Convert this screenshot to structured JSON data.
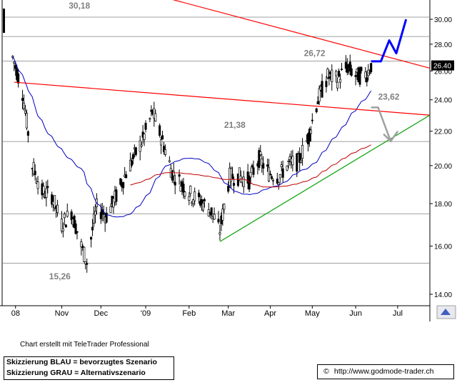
{
  "chart_data": {
    "type": "candlestick",
    "title": "",
    "y_axis": {
      "scale": "log",
      "ticks": [
        14.0,
        16.0,
        18.0,
        20.0,
        22.0,
        24.0,
        26.0,
        28.0,
        30.0
      ],
      "tick_labels": [
        "14.00",
        "16.00",
        "18.00",
        "20.00",
        "22.00",
        "24.00",
        "26.00",
        "28.00",
        "30.00"
      ],
      "position": "right",
      "ylim": [
        13.5,
        31.3
      ]
    },
    "x_axis": {
      "tick_labels": [
        "08",
        "Nov",
        "Dec",
        "'09",
        "Feb",
        "Mar",
        "Apr",
        "May",
        "Jun",
        "Jul"
      ],
      "range": [
        "2008-09-29",
        "2009-07-24"
      ]
    },
    "grid": false,
    "last_price": {
      "label": "26.40",
      "value": 26.4,
      "color": "#000000"
    },
    "price_series_summary": {
      "start": "2008-09-29",
      "end": "2009-06-12",
      "approx_closes": [
        [
          "2008-09-29",
          27.0
        ],
        [
          "2008-10-06",
          24.5
        ],
        [
          "2008-10-13",
          20.0
        ],
        [
          "2008-10-20",
          18.6
        ],
        [
          "2008-10-27",
          18.4
        ],
        [
          "2008-11-03",
          17.0
        ],
        [
          "2008-11-10",
          17.6
        ],
        [
          "2008-11-17",
          16.0
        ],
        [
          "2008-11-21",
          15.3
        ],
        [
          "2008-11-28",
          17.8
        ],
        [
          "2008-12-05",
          17.4
        ],
        [
          "2008-12-12",
          18.4
        ],
        [
          "2008-12-19",
          19.6
        ],
        [
          "2008-12-31",
          21.5
        ],
        [
          "2009-01-07",
          23.2
        ],
        [
          "2009-01-14",
          21.4
        ],
        [
          "2009-01-21",
          19.6
        ],
        [
          "2009-01-28",
          19.0
        ],
        [
          "2009-02-04",
          18.4
        ],
        [
          "2009-02-11",
          18.1
        ],
        [
          "2009-02-18",
          17.6
        ],
        [
          "2009-02-24",
          16.7
        ],
        [
          "2009-03-03",
          19.4
        ],
        [
          "2009-03-10",
          19.4
        ],
        [
          "2009-03-17",
          19.2
        ],
        [
          "2009-03-24",
          20.4
        ],
        [
          "2009-03-31",
          19.6
        ],
        [
          "2009-04-07",
          19.4
        ],
        [
          "2009-04-14",
          20.1
        ],
        [
          "2009-04-21",
          20.2
        ],
        [
          "2009-04-28",
          21.6
        ],
        [
          "2009-05-05",
          24.0
        ],
        [
          "2009-05-12",
          25.6
        ],
        [
          "2009-05-19",
          25.4
        ],
        [
          "2009-05-26",
          26.3
        ],
        [
          "2009-06-02",
          25.6
        ],
        [
          "2009-06-09",
          25.8
        ],
        [
          "2009-06-12",
          26.4
        ]
      ]
    },
    "annotations": [
      {
        "text": "30,18",
        "value": 30.18
      },
      {
        "text": "26,72",
        "value": 26.72
      },
      {
        "text": "23,62",
        "value": 23.62
      },
      {
        "text": "21,38",
        "value": 21.38
      },
      {
        "text": "15,26",
        "value": 15.26
      }
    ],
    "horizontal_lines": [
      30.18,
      28.6,
      26.72,
      21.38,
      17.5,
      15.26
    ],
    "series": [
      {
        "name": "",
        "kind": "moving-average",
        "color": "#0000c0"
      },
      {
        "name": "",
        "kind": "moving-average",
        "color": "#c00000"
      }
    ],
    "trendlines": [
      {
        "kind": "resistance-descending",
        "color": "#ff0000",
        "from": [
          "2008-09-30",
          25.2
        ],
        "to": [
          "2009-07-24",
          23.0
        ]
      },
      {
        "kind": "support-ascending",
        "color": "#00a000",
        "from": [
          "2009-02-24",
          16.2
        ],
        "to": [
          "2009-07-24",
          23.0
        ]
      },
      {
        "kind": "long-term-descending",
        "color": "#ff0000",
        "from": [
          "2008-11-14",
          34.0
        ],
        "to": [
          "2009-07-24",
          26.2
        ]
      }
    ],
    "scenarios": [
      {
        "kind": "blue",
        "color": "#0000ff",
        "path": [
          [
            "2009-06-12",
            26.7
          ],
          [
            "2009-06-19",
            26.7
          ],
          [
            "2009-06-25",
            28.3
          ],
          [
            "2009-06-30",
            27.3
          ],
          [
            "2009-07-07",
            30.0
          ]
        ]
      },
      {
        "kind": "grey",
        "color": "#a0a0a0",
        "path": [
          [
            "2009-06-12",
            23.5
          ],
          [
            "2009-06-17",
            23.5
          ],
          [
            "2009-06-26",
            21.4
          ]
        ]
      }
    ]
  },
  "footer": {
    "credit": "Chart erstellt mit TeleTrader Professional",
    "legend": [
      "Skizzierung BLAU = bevorzugtes Szenario",
      "Skizzierung GRAU = Alternativszenario"
    ],
    "copyright_symbol": "©",
    "url": "http://www.godmode-trader.ch"
  },
  "colors": {
    "candle": "#000000",
    "ma_blue": "#0000c0",
    "ma_red": "#c00000",
    "trend_red": "#ff0000",
    "trend_green": "#00a000",
    "scenario_blue": "#0000ff",
    "scenario_grey": "#a0a0a0",
    "hline": "#808080",
    "label_grey": "#808080"
  },
  "icons": {
    "axis_corner": "chart-settings-icon"
  }
}
